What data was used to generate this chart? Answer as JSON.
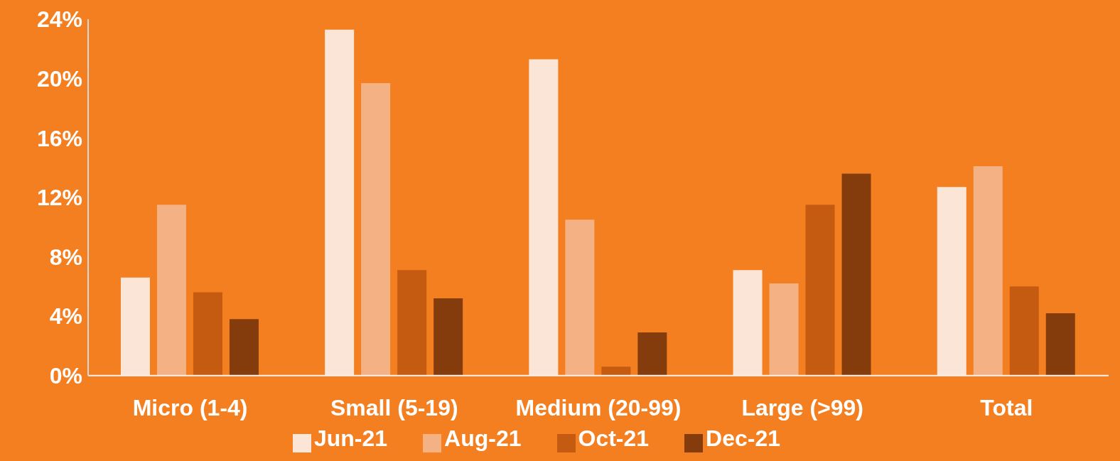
{
  "chart_data": {
    "type": "bar",
    "categories": [
      "Micro (1-4)",
      "Small (5-19)",
      "Medium (20-99)",
      "Large (>99)",
      "Total"
    ],
    "series": [
      {
        "name": "Jun-21",
        "color": "#fbe5d6",
        "values": [
          6.6,
          23.3,
          21.3,
          7.1,
          12.7
        ]
      },
      {
        "name": "Aug-21",
        "color": "#f4b183",
        "values": [
          11.5,
          19.7,
          10.5,
          6.2,
          14.1
        ]
      },
      {
        "name": "Oct-21",
        "color": "#c55a11",
        "values": [
          5.6,
          7.1,
          0.6,
          11.5,
          6.0
        ]
      },
      {
        "name": "Dec-21",
        "color": "#843c0c",
        "values": [
          3.8,
          5.2,
          2.9,
          13.6,
          4.2
        ]
      }
    ],
    "ylim": [
      0,
      24
    ],
    "yticks": [
      {
        "value": 0,
        "label": "0%"
      },
      {
        "value": 4,
        "label": "4%"
      },
      {
        "value": 8,
        "label": "8%"
      },
      {
        "value": 12,
        "label": "12%"
      },
      {
        "value": 16,
        "label": "16%"
      },
      {
        "value": 20,
        "label": "20%"
      },
      {
        "value": 24,
        "label": "24%"
      }
    ],
    "grid": false,
    "legend": "bottom"
  }
}
